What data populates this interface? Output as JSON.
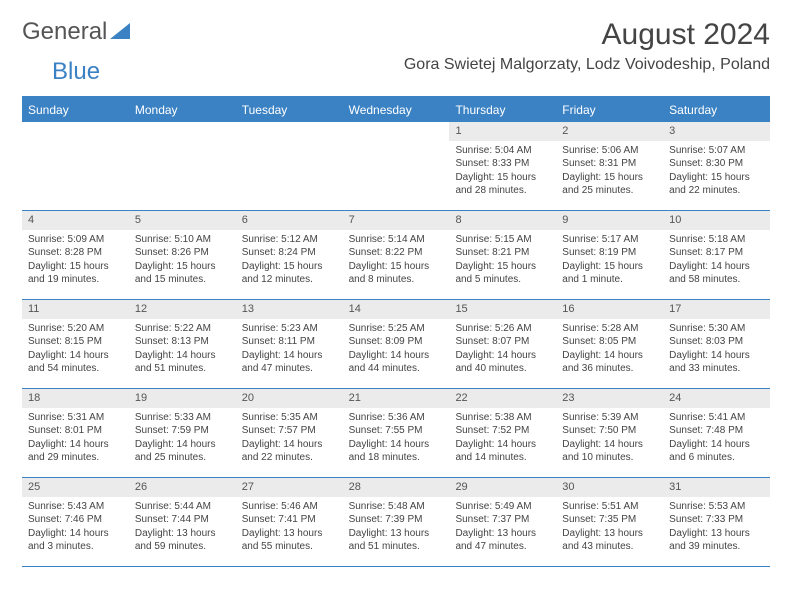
{
  "logo": {
    "text1": "General",
    "text2": "Blue"
  },
  "title": "August 2024",
  "location": "Gora Swietej Malgorzaty, Lodz Voivodeship, Poland",
  "colors": {
    "header_bg": "#3b82c4",
    "header_text": "#ffffff",
    "daynum_bg": "#ebebeb",
    "text": "#444444",
    "page_bg": "#ffffff"
  },
  "weekdays": [
    "Sunday",
    "Monday",
    "Tuesday",
    "Wednesday",
    "Thursday",
    "Friday",
    "Saturday"
  ],
  "weeks": [
    [
      {
        "n": "",
        "sr": "",
        "ss": "",
        "dl": ""
      },
      {
        "n": "",
        "sr": "",
        "ss": "",
        "dl": ""
      },
      {
        "n": "",
        "sr": "",
        "ss": "",
        "dl": ""
      },
      {
        "n": "",
        "sr": "",
        "ss": "",
        "dl": ""
      },
      {
        "n": "1",
        "sr": "Sunrise: 5:04 AM",
        "ss": "Sunset: 8:33 PM",
        "dl": "Daylight: 15 hours and 28 minutes."
      },
      {
        "n": "2",
        "sr": "Sunrise: 5:06 AM",
        "ss": "Sunset: 8:31 PM",
        "dl": "Daylight: 15 hours and 25 minutes."
      },
      {
        "n": "3",
        "sr": "Sunrise: 5:07 AM",
        "ss": "Sunset: 8:30 PM",
        "dl": "Daylight: 15 hours and 22 minutes."
      }
    ],
    [
      {
        "n": "4",
        "sr": "Sunrise: 5:09 AM",
        "ss": "Sunset: 8:28 PM",
        "dl": "Daylight: 15 hours and 19 minutes."
      },
      {
        "n": "5",
        "sr": "Sunrise: 5:10 AM",
        "ss": "Sunset: 8:26 PM",
        "dl": "Daylight: 15 hours and 15 minutes."
      },
      {
        "n": "6",
        "sr": "Sunrise: 5:12 AM",
        "ss": "Sunset: 8:24 PM",
        "dl": "Daylight: 15 hours and 12 minutes."
      },
      {
        "n": "7",
        "sr": "Sunrise: 5:14 AM",
        "ss": "Sunset: 8:22 PM",
        "dl": "Daylight: 15 hours and 8 minutes."
      },
      {
        "n": "8",
        "sr": "Sunrise: 5:15 AM",
        "ss": "Sunset: 8:21 PM",
        "dl": "Daylight: 15 hours and 5 minutes."
      },
      {
        "n": "9",
        "sr": "Sunrise: 5:17 AM",
        "ss": "Sunset: 8:19 PM",
        "dl": "Daylight: 15 hours and 1 minute."
      },
      {
        "n": "10",
        "sr": "Sunrise: 5:18 AM",
        "ss": "Sunset: 8:17 PM",
        "dl": "Daylight: 14 hours and 58 minutes."
      }
    ],
    [
      {
        "n": "11",
        "sr": "Sunrise: 5:20 AM",
        "ss": "Sunset: 8:15 PM",
        "dl": "Daylight: 14 hours and 54 minutes."
      },
      {
        "n": "12",
        "sr": "Sunrise: 5:22 AM",
        "ss": "Sunset: 8:13 PM",
        "dl": "Daylight: 14 hours and 51 minutes."
      },
      {
        "n": "13",
        "sr": "Sunrise: 5:23 AM",
        "ss": "Sunset: 8:11 PM",
        "dl": "Daylight: 14 hours and 47 minutes."
      },
      {
        "n": "14",
        "sr": "Sunrise: 5:25 AM",
        "ss": "Sunset: 8:09 PM",
        "dl": "Daylight: 14 hours and 44 minutes."
      },
      {
        "n": "15",
        "sr": "Sunrise: 5:26 AM",
        "ss": "Sunset: 8:07 PM",
        "dl": "Daylight: 14 hours and 40 minutes."
      },
      {
        "n": "16",
        "sr": "Sunrise: 5:28 AM",
        "ss": "Sunset: 8:05 PM",
        "dl": "Daylight: 14 hours and 36 minutes."
      },
      {
        "n": "17",
        "sr": "Sunrise: 5:30 AM",
        "ss": "Sunset: 8:03 PM",
        "dl": "Daylight: 14 hours and 33 minutes."
      }
    ],
    [
      {
        "n": "18",
        "sr": "Sunrise: 5:31 AM",
        "ss": "Sunset: 8:01 PM",
        "dl": "Daylight: 14 hours and 29 minutes."
      },
      {
        "n": "19",
        "sr": "Sunrise: 5:33 AM",
        "ss": "Sunset: 7:59 PM",
        "dl": "Daylight: 14 hours and 25 minutes."
      },
      {
        "n": "20",
        "sr": "Sunrise: 5:35 AM",
        "ss": "Sunset: 7:57 PM",
        "dl": "Daylight: 14 hours and 22 minutes."
      },
      {
        "n": "21",
        "sr": "Sunrise: 5:36 AM",
        "ss": "Sunset: 7:55 PM",
        "dl": "Daylight: 14 hours and 18 minutes."
      },
      {
        "n": "22",
        "sr": "Sunrise: 5:38 AM",
        "ss": "Sunset: 7:52 PM",
        "dl": "Daylight: 14 hours and 14 minutes."
      },
      {
        "n": "23",
        "sr": "Sunrise: 5:39 AM",
        "ss": "Sunset: 7:50 PM",
        "dl": "Daylight: 14 hours and 10 minutes."
      },
      {
        "n": "24",
        "sr": "Sunrise: 5:41 AM",
        "ss": "Sunset: 7:48 PM",
        "dl": "Daylight: 14 hours and 6 minutes."
      }
    ],
    [
      {
        "n": "25",
        "sr": "Sunrise: 5:43 AM",
        "ss": "Sunset: 7:46 PM",
        "dl": "Daylight: 14 hours and 3 minutes."
      },
      {
        "n": "26",
        "sr": "Sunrise: 5:44 AM",
        "ss": "Sunset: 7:44 PM",
        "dl": "Daylight: 13 hours and 59 minutes."
      },
      {
        "n": "27",
        "sr": "Sunrise: 5:46 AM",
        "ss": "Sunset: 7:41 PM",
        "dl": "Daylight: 13 hours and 55 minutes."
      },
      {
        "n": "28",
        "sr": "Sunrise: 5:48 AM",
        "ss": "Sunset: 7:39 PM",
        "dl": "Daylight: 13 hours and 51 minutes."
      },
      {
        "n": "29",
        "sr": "Sunrise: 5:49 AM",
        "ss": "Sunset: 7:37 PM",
        "dl": "Daylight: 13 hours and 47 minutes."
      },
      {
        "n": "30",
        "sr": "Sunrise: 5:51 AM",
        "ss": "Sunset: 7:35 PM",
        "dl": "Daylight: 13 hours and 43 minutes."
      },
      {
        "n": "31",
        "sr": "Sunrise: 5:53 AM",
        "ss": "Sunset: 7:33 PM",
        "dl": "Daylight: 13 hours and 39 minutes."
      }
    ]
  ]
}
